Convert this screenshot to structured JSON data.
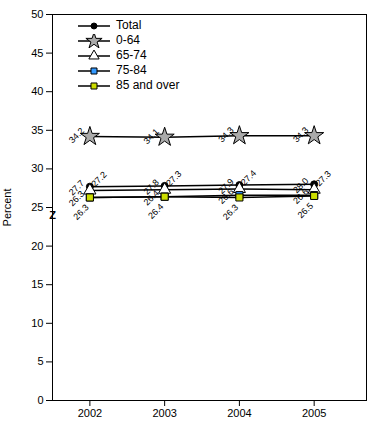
{
  "chart_data": {
    "type": "line",
    "x": [
      2002,
      2003,
      2004,
      2005
    ],
    "series": [
      {
        "name": "Total",
        "color": "#000000",
        "marker": "circle",
        "values": [
          27.7,
          27.8,
          27.9,
          28.0
        ],
        "value_labels": [
          "27.7",
          "27.8",
          "27.9",
          "28.0"
        ]
      },
      {
        "name": "0-64",
        "color": "#aaaaaa",
        "marker": "star",
        "values": [
          34.2,
          34.1,
          34.3,
          34.3
        ],
        "value_labels": [
          "34.2",
          "34.1",
          "34.3",
          "34.3"
        ]
      },
      {
        "name": "65-74",
        "color": "#ffffff",
        "marker": "triangle",
        "values": [
          27.2,
          27.3,
          27.4,
          27.3
        ],
        "value_labels": [
          "27.2",
          "27.3",
          "27.4",
          "27.3"
        ]
      },
      {
        "name": "75-84",
        "color": "#3399ff",
        "marker": "square",
        "values": [
          26.3,
          26.4,
          26.6,
          26.6
        ],
        "value_labels": [
          "26.3",
          "26.4",
          "26.6",
          "26.6"
        ]
      },
      {
        "name": "85 and over",
        "color": "#ccdd00",
        "marker": "square",
        "values": [
          26.3,
          26.4,
          26.3,
          26.5
        ],
        "value_labels": [
          "26.3",
          "26.4",
          "26.3",
          "26.5"
        ]
      }
    ],
    "xlim": [
      2001.5,
      2005.7
    ],
    "xticks": [
      2002,
      2003,
      2004,
      2005
    ],
    "ylim": [
      0,
      50
    ],
    "yticks": [
      0,
      5,
      10,
      15,
      20,
      25,
      30,
      35,
      40,
      45,
      50
    ],
    "ylabel": "Percent",
    "grid": false,
    "legend": "upper left",
    "data_labels": true,
    "annotations": [
      {
        "text": "Z",
        "y": 24
      }
    ]
  }
}
